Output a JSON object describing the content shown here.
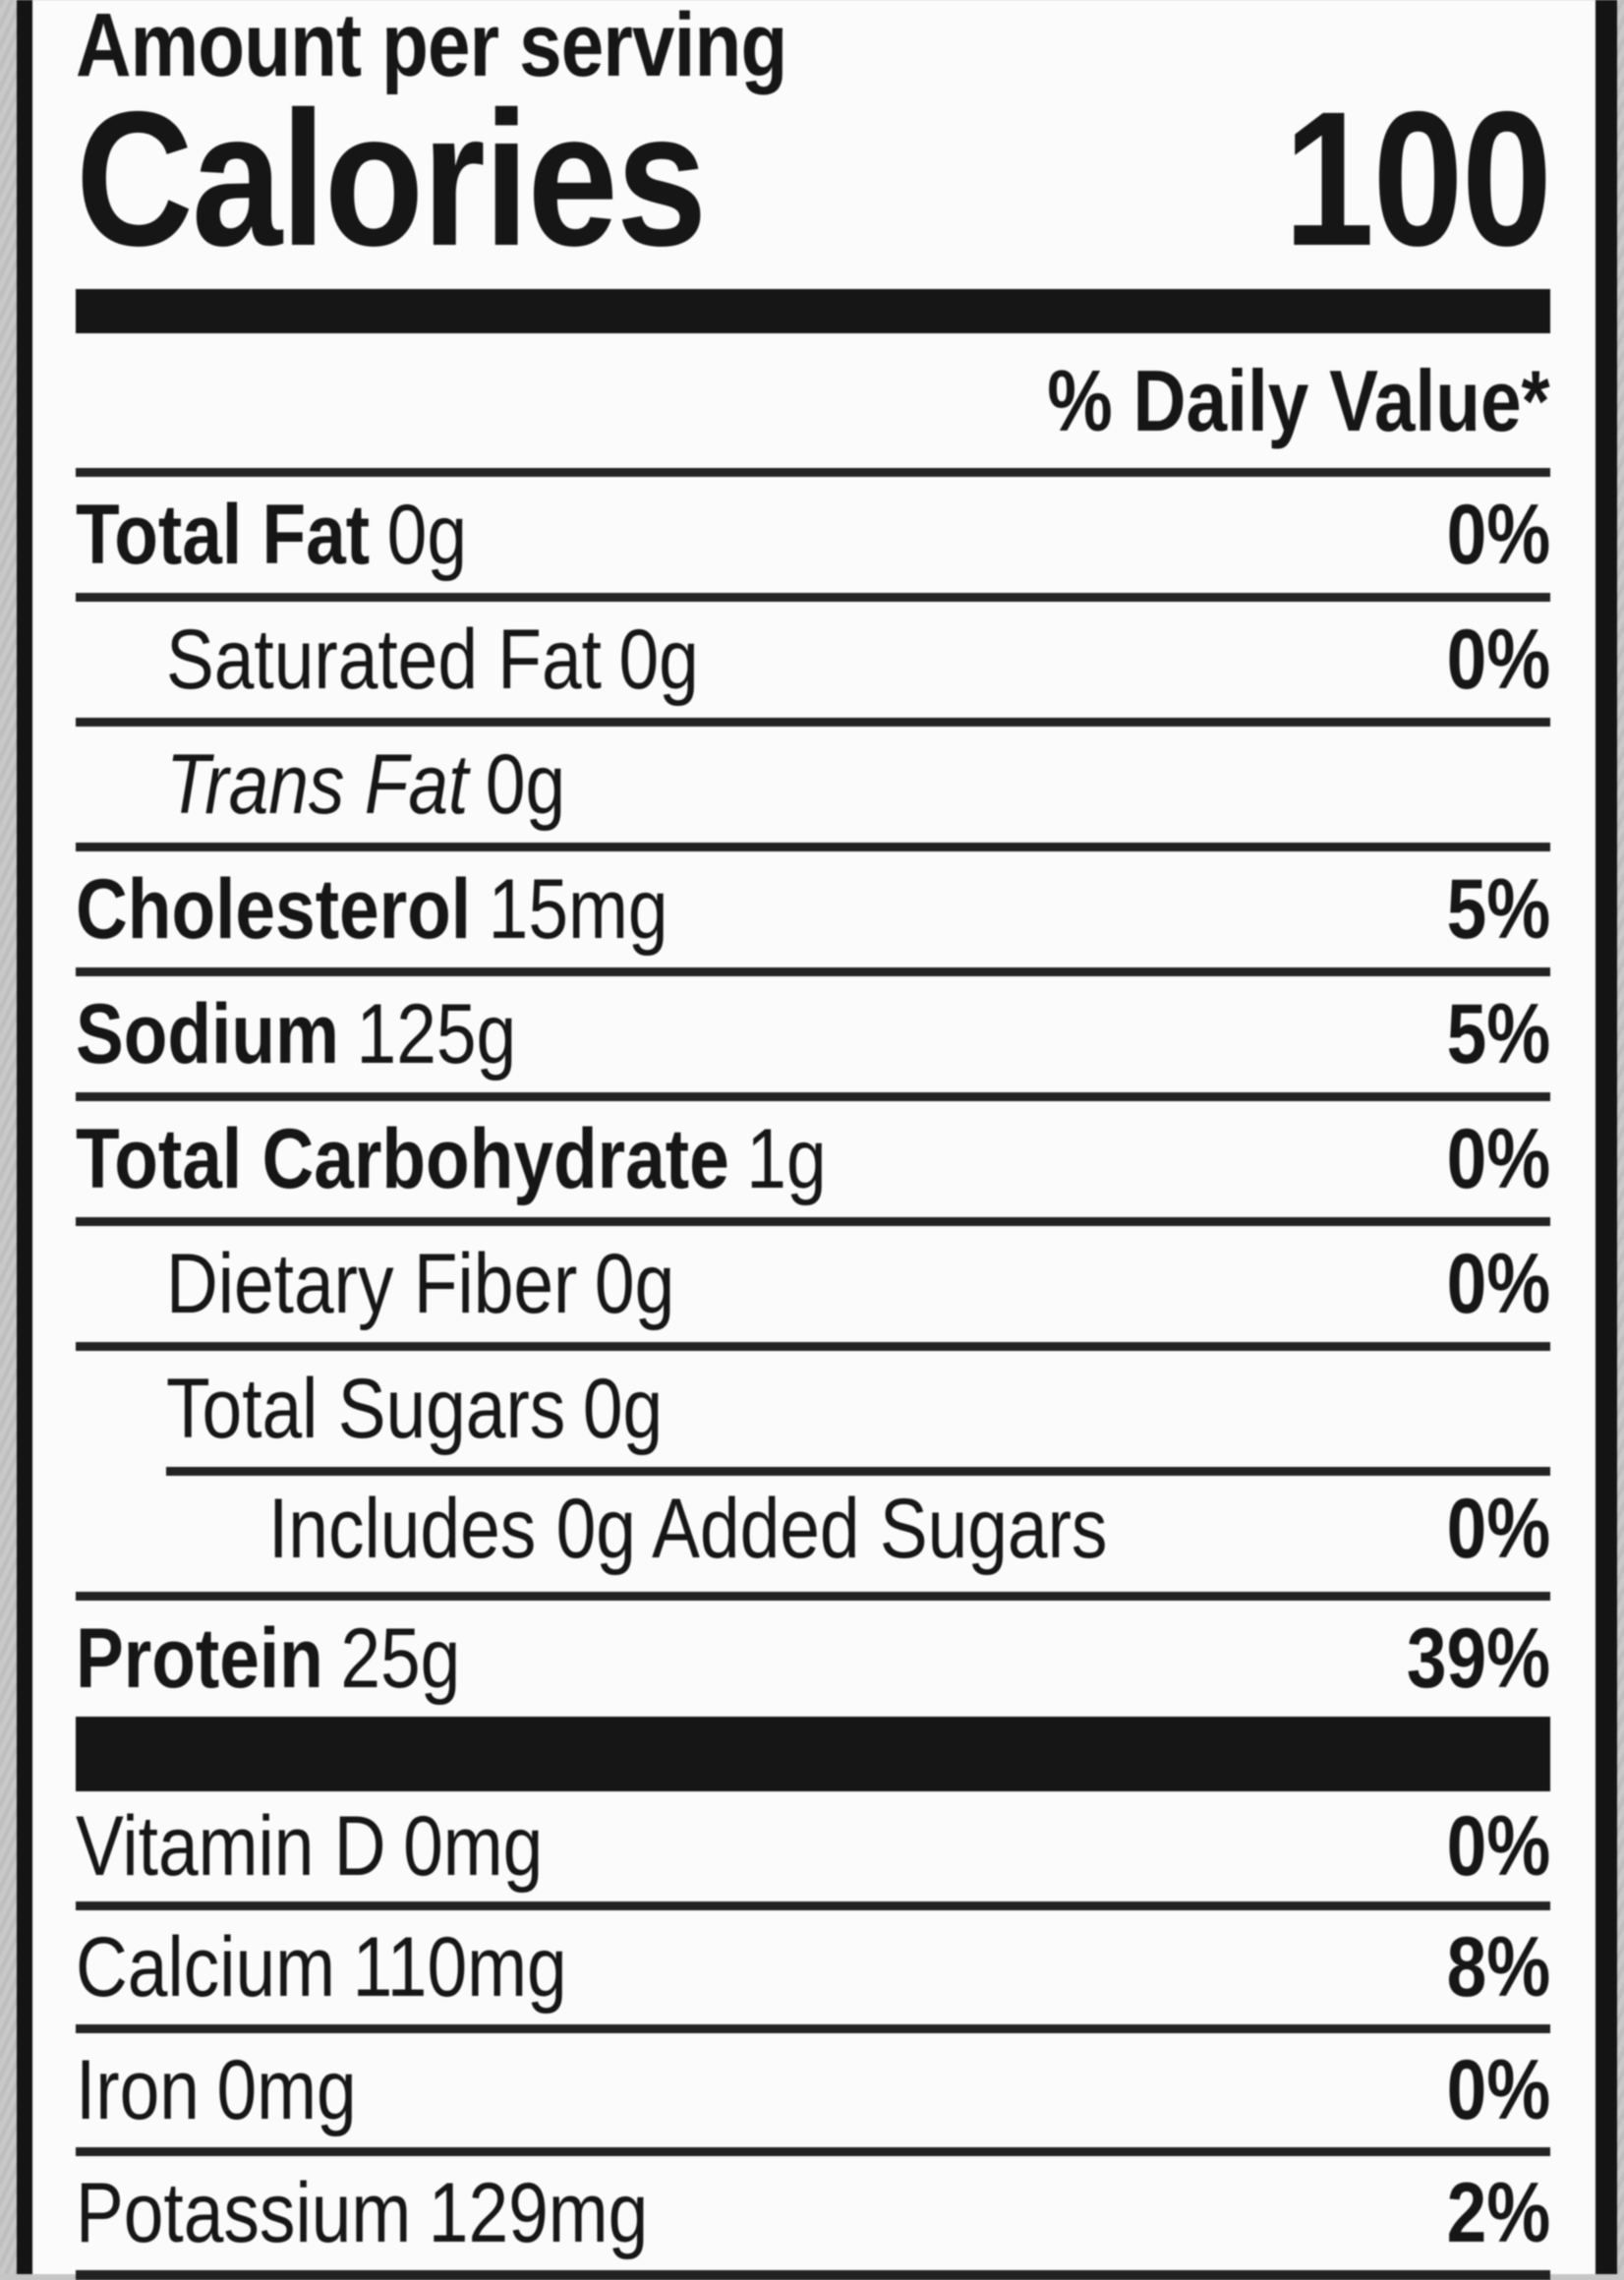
{
  "colors": {
    "ink": "#161616",
    "rule": "#222222",
    "paper": "#fbfbfb",
    "outer_background": "#c6c6c6"
  },
  "label": {
    "amount_per_serving": "Amount per serving",
    "calories": {
      "label": "Calories",
      "value": "100"
    },
    "daily_value_header": "% Daily Value*",
    "nutrients": [
      {
        "name": "Total Fat",
        "amount": "0g",
        "daily_value": "0%",
        "indent": 0,
        "bold": true
      },
      {
        "name": "Saturated Fat",
        "amount": "0g",
        "daily_value": "0%",
        "indent": 1
      },
      {
        "name": "Trans Fat",
        "amount": "0g",
        "daily_value": "",
        "indent": 1,
        "italic": true
      },
      {
        "name": "Cholesterol",
        "amount": "15mg",
        "daily_value": "5%",
        "indent": 0,
        "bold": true
      },
      {
        "name": "Sodium",
        "amount": "125g",
        "daily_value": "5%",
        "indent": 0,
        "bold": true
      },
      {
        "name": "Total Carbohydrate",
        "amount": "1g",
        "daily_value": "0%",
        "indent": 0,
        "bold": true
      },
      {
        "name": "Dietary Fiber",
        "amount": "0g",
        "daily_value": "0%",
        "indent": 1
      },
      {
        "name": "Total Sugars",
        "amount": "0g",
        "daily_value": "",
        "indent": 1
      },
      {
        "name": "Includes 0g Added Sugars",
        "amount": "",
        "daily_value": "0%",
        "indent": 2,
        "rule_indent": true
      },
      {
        "name": "Protein",
        "amount": "25g",
        "daily_value": "39%",
        "indent": 0,
        "bold": true
      }
    ],
    "micronutrients": [
      {
        "name": "Vitamin D",
        "amount": "0mg",
        "daily_value": "0%"
      },
      {
        "name": "Calcium",
        "amount": "110mg",
        "daily_value": "8%"
      },
      {
        "name": "Iron",
        "amount": "0mg",
        "daily_value": "0%"
      },
      {
        "name": "Potassium",
        "amount": "129mg",
        "daily_value": "2%"
      }
    ]
  }
}
